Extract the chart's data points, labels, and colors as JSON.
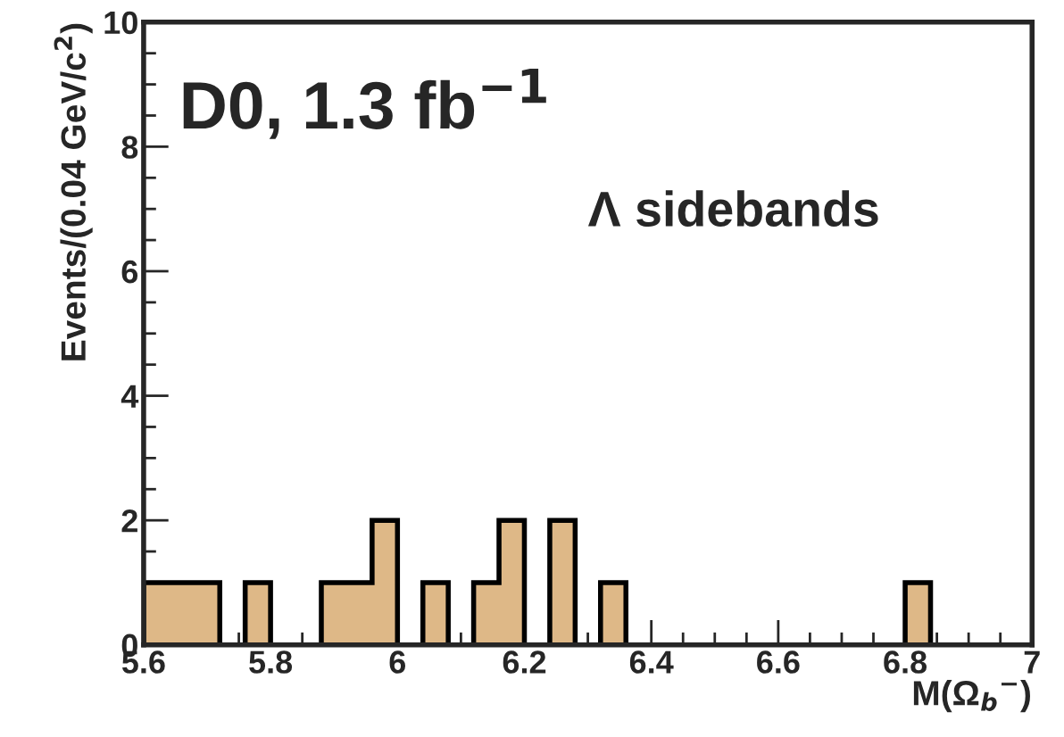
{
  "chart_data": {
    "type": "histogram",
    "xlabel": "M(Ω$_{b}$$^{−}$)",
    "ylabel": "Events/(0.04 GeV/c$^{2}$)",
    "annotations": [
      "D0, 1.3 fb$^{−1}$",
      "Λ sidebands"
    ],
    "bins": [
      5.6,
      5.64,
      5.68,
      5.72,
      5.76,
      5.8,
      5.84,
      5.88,
      5.92,
      5.96,
      6.0,
      6.04,
      6.08,
      6.12,
      6.16,
      6.2,
      6.24,
      6.28,
      6.32,
      6.36,
      6.4,
      6.44,
      6.48,
      6.52,
      6.56,
      6.6,
      6.64,
      6.68,
      6.72,
      6.76,
      6.8,
      6.84,
      6.88,
      6.92,
      6.96,
      7.0
    ],
    "values": [
      1,
      1,
      1,
      0,
      1,
      0,
      0,
      1,
      1,
      2,
      0,
      1,
      0,
      1,
      2,
      0,
      2,
      0,
      1,
      0,
      0,
      0,
      0,
      0,
      0,
      0,
      0,
      0,
      0,
      0,
      1,
      0,
      0,
      0,
      0
    ],
    "color": "#deb887",
    "xlim": [
      5.6,
      7.0
    ],
    "xticks": [
      5.6,
      5.8,
      6,
      6.2,
      6.4,
      6.6,
      6.8,
      7
    ],
    "ylim": [
      0,
      10
    ],
    "yticks": [
      0,
      2,
      4,
      6,
      8,
      10
    ],
    "grid": false,
    "legend": false
  }
}
